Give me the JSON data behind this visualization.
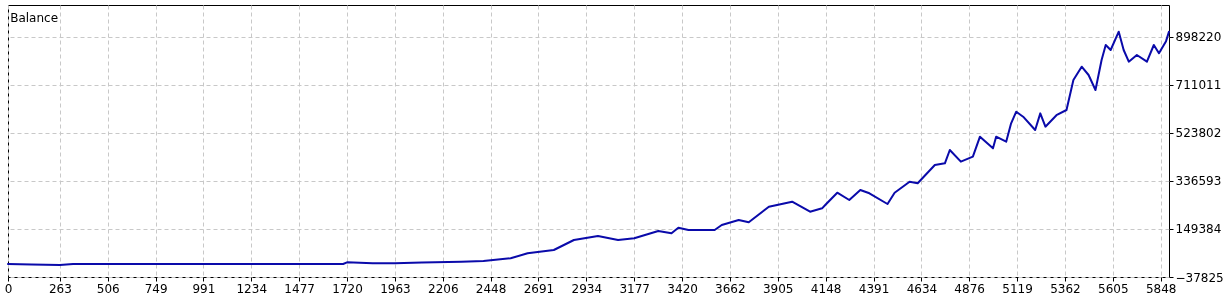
{
  "chart_data": {
    "type": "line",
    "title": "Balance",
    "x": [
      0,
      120,
      263,
      330,
      800,
      1500,
      1700,
      1720,
      1850,
      1963,
      2100,
      2300,
      2412,
      2550,
      2636,
      2769,
      2871,
      2993,
      3095,
      3177,
      3299,
      3366,
      3401,
      3452,
      3585,
      3621,
      3707,
      3758,
      3860,
      3978,
      4069,
      4130,
      4146,
      4207,
      4268,
      4324,
      4370,
      4462,
      4498,
      4574,
      4615,
      4702,
      4753,
      4778,
      4834,
      4895,
      4931,
      4997,
      5013,
      5064,
      5089,
      5115,
      5150,
      5211,
      5237,
      5263,
      5319,
      5370,
      5405,
      5447,
      5482,
      5517,
      5548,
      5569,
      5594,
      5635,
      5660,
      5686,
      5727,
      5778,
      5813,
      5839,
      5875,
      5890
    ],
    "series": [
      {
        "color": "#0a0aaa",
        "values": [
          12900,
          11000,
          9000,
          12900,
          12900,
          12900,
          12900,
          19500,
          16000,
          15600,
          19000,
          22000,
          24600,
          35100,
          54600,
          67500,
          106500,
          122000,
          106500,
          113000,
          141600,
          132600,
          154500,
          145500,
          145500,
          165000,
          184500,
          175500,
          236400,
          256000,
          216900,
          230000,
          243000,
          291000,
          262500,
          301500,
          288600,
          246900,
          291000,
          333800,
          327600,
          399000,
          405500,
          457500,
          412000,
          431500,
          509400,
          464000,
          509400,
          489900,
          561600,
          606900,
          587400,
          535500,
          600400,
          548400,
          593200,
          613500,
          730500,
          782400,
          750000,
          691500,
          808500,
          867000,
          847500,
          919000,
          847500,
          802000,
          828000,
          802000,
          867000,
          835000,
          882000,
          919000
        ]
      }
    ],
    "xlim": [
      0,
      5890
    ],
    "xticks": [
      0,
      263,
      506,
      749,
      991,
      1234,
      1477,
      1720,
      1963,
      2206,
      2448,
      2691,
      2934,
      3177,
      3420,
      3662,
      3905,
      4148,
      4391,
      4634,
      4876,
      5119,
      5362,
      5605,
      5848
    ],
    "ylim": [
      -37825,
      1023000
    ],
    "yticks": [
      -37825,
      149384,
      336593,
      523802,
      711011,
      898220
    ],
    "grid": true,
    "line_style": "solid",
    "marker": "none"
  }
}
